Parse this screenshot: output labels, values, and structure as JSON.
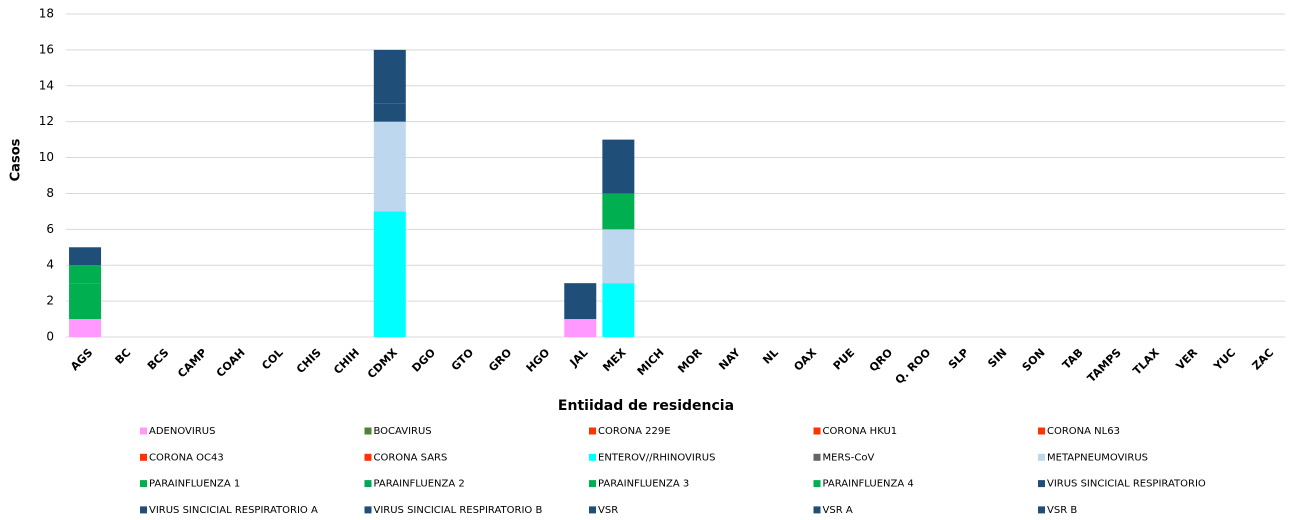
{
  "chart_data": {
    "type": "stacked_bar",
    "xlabel": "Entiidad de residencia",
    "ylabel": "Casos",
    "categories": [
      "AGS",
      "BC",
      "BCS",
      "CAMP",
      "COAH",
      "COL",
      "CHIS",
      "CHIH",
      "CDMX",
      "DGO",
      "GTO",
      "GRO",
      "HGO",
      "JAL",
      "MEX",
      "MICH",
      "MOR",
      "NAY",
      "NL",
      "OAX",
      "PUE",
      "QRO",
      "Q. ROO",
      "SLP",
      "SIN",
      "SON",
      "TAB",
      "TAMPS",
      "TLAX",
      "VER",
      "YUC",
      "ZAC"
    ],
    "ylim": [
      0,
      18
    ],
    "yticks": [
      0,
      2,
      4,
      6,
      8,
      10,
      12,
      14,
      16,
      18
    ],
    "grid": true,
    "series": [
      {
        "name": "ADENOVIRUS",
        "color": "#ff99ff",
        "values": [
          1,
          0,
          0,
          0,
          0,
          0,
          0,
          0,
          0,
          0,
          0,
          0,
          0,
          1,
          0,
          0,
          0,
          0,
          0,
          0,
          0,
          0,
          0,
          0,
          0,
          0,
          0,
          0,
          0,
          0,
          0,
          0
        ]
      },
      {
        "name": "BOCAVIRUS",
        "color": "#548235",
        "values": [
          0,
          0,
          0,
          0,
          0,
          0,
          0,
          0,
          0,
          0,
          0,
          0,
          0,
          0,
          0,
          0,
          0,
          0,
          0,
          0,
          0,
          0,
          0,
          0,
          0,
          0,
          0,
          0,
          0,
          0,
          0,
          0
        ]
      },
      {
        "name": "CORONA 229E",
        "color": "#ff3300",
        "values": [
          0,
          0,
          0,
          0,
          0,
          0,
          0,
          0,
          0,
          0,
          0,
          0,
          0,
          0,
          0,
          0,
          0,
          0,
          0,
          0,
          0,
          0,
          0,
          0,
          0,
          0,
          0,
          0,
          0,
          0,
          0,
          0
        ]
      },
      {
        "name": "CORONA HKU1",
        "color": "#ff3300",
        "values": [
          0,
          0,
          0,
          0,
          0,
          0,
          0,
          0,
          0,
          0,
          0,
          0,
          0,
          0,
          0,
          0,
          0,
          0,
          0,
          0,
          0,
          0,
          0,
          0,
          0,
          0,
          0,
          0,
          0,
          0,
          0,
          0
        ]
      },
      {
        "name": "CORONA NL63",
        "color": "#ff3300",
        "values": [
          0,
          0,
          0,
          0,
          0,
          0,
          0,
          0,
          0,
          0,
          0,
          0,
          0,
          0,
          0,
          0,
          0,
          0,
          0,
          0,
          0,
          0,
          0,
          0,
          0,
          0,
          0,
          0,
          0,
          0,
          0,
          0
        ]
      },
      {
        "name": "CORONA OC43",
        "color": "#ff3300",
        "values": [
          0,
          0,
          0,
          0,
          0,
          0,
          0,
          0,
          0,
          0,
          0,
          0,
          0,
          0,
          0,
          0,
          0,
          0,
          0,
          0,
          0,
          0,
          0,
          0,
          0,
          0,
          0,
          0,
          0,
          0,
          0,
          0
        ]
      },
      {
        "name": "CORONA SARS",
        "color": "#ff3300",
        "values": [
          0,
          0,
          0,
          0,
          0,
          0,
          0,
          0,
          0,
          0,
          0,
          0,
          0,
          0,
          0,
          0,
          0,
          0,
          0,
          0,
          0,
          0,
          0,
          0,
          0,
          0,
          0,
          0,
          0,
          0,
          0,
          0
        ]
      },
      {
        "name": "ENTEROV//RHINOVIRUS",
        "color": "#00ffff",
        "values": [
          0,
          0,
          0,
          0,
          0,
          0,
          0,
          0,
          7,
          0,
          0,
          0,
          0,
          0,
          3,
          0,
          0,
          0,
          0,
          0,
          0,
          0,
          0,
          0,
          0,
          0,
          0,
          0,
          0,
          0,
          0,
          0
        ]
      },
      {
        "name": "MERS-CoV",
        "color": "#666666",
        "values": [
          0,
          0,
          0,
          0,
          0,
          0,
          0,
          0,
          0,
          0,
          0,
          0,
          0,
          0,
          0,
          0,
          0,
          0,
          0,
          0,
          0,
          0,
          0,
          0,
          0,
          0,
          0,
          0,
          0,
          0,
          0,
          0
        ]
      },
      {
        "name": "METAPNEUMOVIRUS",
        "color": "#bdd7ee",
        "values": [
          0,
          0,
          0,
          0,
          0,
          0,
          0,
          0,
          5,
          0,
          0,
          0,
          0,
          0,
          3,
          0,
          0,
          0,
          0,
          0,
          0,
          0,
          0,
          0,
          0,
          0,
          0,
          0,
          0,
          0,
          0,
          0
        ]
      },
      {
        "name": "PARAINFLUENZA 1",
        "color": "#00b050",
        "values": [
          2,
          0,
          0,
          0,
          0,
          0,
          0,
          0,
          0,
          0,
          0,
          0,
          0,
          0,
          0,
          0,
          0,
          0,
          0,
          0,
          0,
          0,
          0,
          0,
          0,
          0,
          0,
          0,
          0,
          0,
          0,
          0
        ]
      },
      {
        "name": "PARAINFLUENZA 2",
        "color": "#00a65a",
        "values": [
          0,
          0,
          0,
          0,
          0,
          0,
          0,
          0,
          0,
          0,
          0,
          0,
          0,
          0,
          0,
          0,
          0,
          0,
          0,
          0,
          0,
          0,
          0,
          0,
          0,
          0,
          0,
          0,
          0,
          0,
          0,
          0
        ]
      },
      {
        "name": "PARAINFLUENZA 3",
        "color": "#00b050",
        "values": [
          1,
          0,
          0,
          0,
          0,
          0,
          0,
          0,
          0,
          0,
          0,
          0,
          0,
          0,
          2,
          0,
          0,
          0,
          0,
          0,
          0,
          0,
          0,
          0,
          0,
          0,
          0,
          0,
          0,
          0,
          0,
          0
        ]
      },
      {
        "name": "PARAINFLUENZA 4",
        "color": "#00b050",
        "values": [
          0,
          0,
          0,
          0,
          0,
          0,
          0,
          0,
          0,
          0,
          0,
          0,
          0,
          0,
          0,
          0,
          0,
          0,
          0,
          0,
          0,
          0,
          0,
          0,
          0,
          0,
          0,
          0,
          0,
          0,
          0,
          0
        ]
      },
      {
        "name": "VIRUS SINCICIAL RESPIRATORIO",
        "color": "#1f4e79",
        "values": [
          0,
          0,
          0,
          0,
          0,
          0,
          0,
          0,
          0,
          0,
          0,
          0,
          0,
          0,
          0,
          0,
          0,
          0,
          0,
          0,
          0,
          0,
          0,
          0,
          0,
          0,
          0,
          0,
          0,
          0,
          0,
          0
        ]
      },
      {
        "name": "VIRUS SINCICIAL RESPIRATORIO A",
        "color": "#1f4e79",
        "values": [
          0,
          0,
          0,
          0,
          0,
          0,
          0,
          0,
          0,
          0,
          0,
          0,
          0,
          0,
          0,
          0,
          0,
          0,
          0,
          0,
          0,
          0,
          0,
          0,
          0,
          0,
          0,
          0,
          0,
          0,
          0,
          0
        ]
      },
      {
        "name": "VIRUS SINCICIAL RESPIRATORIO B",
        "color": "#1f4e79",
        "values": [
          0,
          0,
          0,
          0,
          0,
          0,
          0,
          0,
          0,
          0,
          0,
          0,
          0,
          0,
          0,
          0,
          0,
          0,
          0,
          0,
          0,
          0,
          0,
          0,
          0,
          0,
          0,
          0,
          0,
          0,
          0,
          0
        ]
      },
      {
        "name": "VSR",
        "color": "#1f4e79",
        "values": [
          0,
          0,
          0,
          0,
          0,
          0,
          0,
          0,
          0,
          0,
          0,
          0,
          0,
          0,
          0,
          0,
          0,
          0,
          0,
          0,
          0,
          0,
          0,
          0,
          0,
          0,
          0,
          0,
          0,
          0,
          0,
          0
        ]
      },
      {
        "name": "VSR A",
        "color": "#1f4e79",
        "values": [
          0,
          0,
          0,
          0,
          0,
          0,
          0,
          0,
          1,
          0,
          0,
          0,
          0,
          0,
          0,
          0,
          0,
          0,
          0,
          0,
          0,
          0,
          0,
          0,
          0,
          0,
          0,
          0,
          0,
          0,
          0,
          0
        ]
      },
      {
        "name": "VSR B",
        "color": "#1f4e79",
        "values": [
          1,
          0,
          0,
          0,
          0,
          0,
          0,
          0,
          3,
          0,
          0,
          0,
          0,
          2,
          3,
          0,
          0,
          0,
          0,
          0,
          0,
          0,
          0,
          0,
          0,
          0,
          0,
          0,
          0,
          0,
          0,
          0
        ]
      }
    ]
  }
}
